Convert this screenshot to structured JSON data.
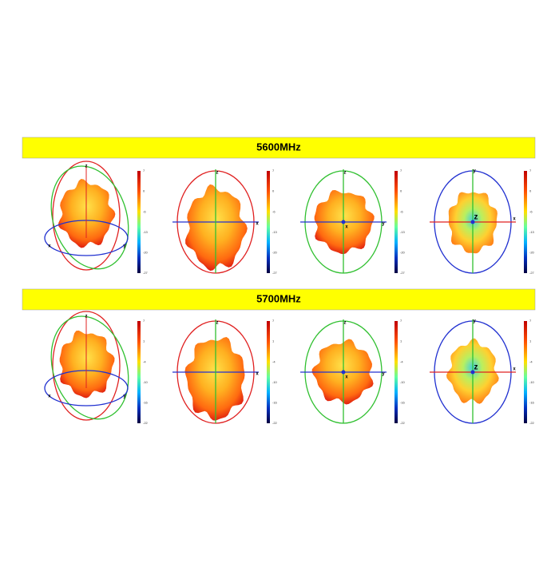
{
  "sections": [
    {
      "title": "5600MHz",
      "colorbar_labels": [
        "7",
        "0",
        "-6",
        "-13",
        "-20",
        "-27"
      ],
      "panels": [
        {
          "labels": [
            "z",
            "x",
            "y"
          ]
        },
        {
          "labels": [
            "z",
            "x"
          ]
        },
        {
          "labels": [
            "z",
            "y",
            "x"
          ]
        },
        {
          "labels": [
            "y",
            "x",
            "z"
          ]
        }
      ]
    },
    {
      "title": "5700MHz",
      "colorbar_labels": [
        "7",
        "1",
        "-4",
        "-10",
        "-16",
        "-22"
      ],
      "panels": [
        {
          "labels": [
            "z",
            "x",
            "y"
          ]
        },
        {
          "labels": [
            "z",
            "x"
          ]
        },
        {
          "labels": [
            "z",
            "y",
            "x"
          ]
        },
        {
          "labels": [
            "y",
            "x",
            "z"
          ]
        }
      ]
    }
  ]
}
